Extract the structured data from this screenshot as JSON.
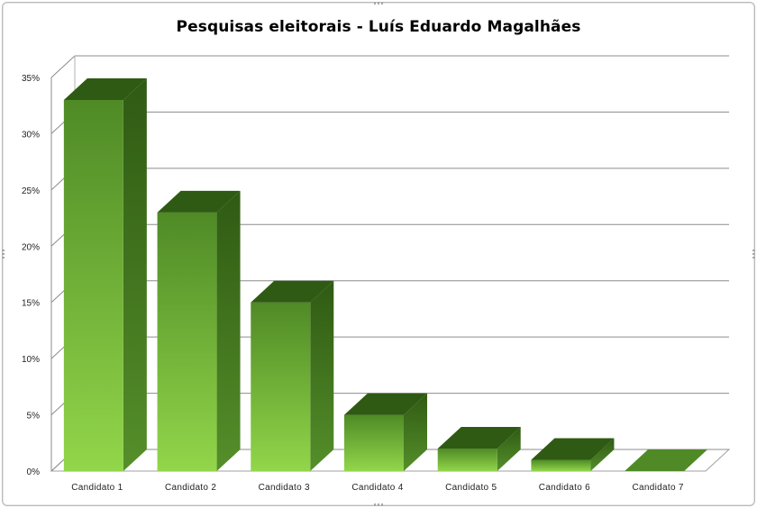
{
  "chart_data": {
    "type": "bar",
    "title": "Pesquisas eleitorais - Luís Eduardo Magalhães",
    "xlabel": "",
    "ylabel": "",
    "categories": [
      "Candidato 1",
      "Candidato 2",
      "Candidato 3",
      "Candidato 4",
      "Candidato 5",
      "Candidato 6",
      "Candidato 7"
    ],
    "values": [
      33,
      23,
      15,
      5,
      2,
      1,
      0
    ],
    "ylim": [
      0,
      35
    ],
    "yticks": [
      "0%",
      "5%",
      "10%",
      "15%",
      "20%",
      "25%",
      "30%",
      "35%"
    ],
    "yunit": "%",
    "grid": true,
    "legend": "none",
    "style": "3d-column",
    "colors": {
      "bar_light": "#92d64a",
      "bar_dark": "#4f8a26",
      "bar_side": "#3a6b1a",
      "bar_top": "#2f5a13"
    }
  }
}
